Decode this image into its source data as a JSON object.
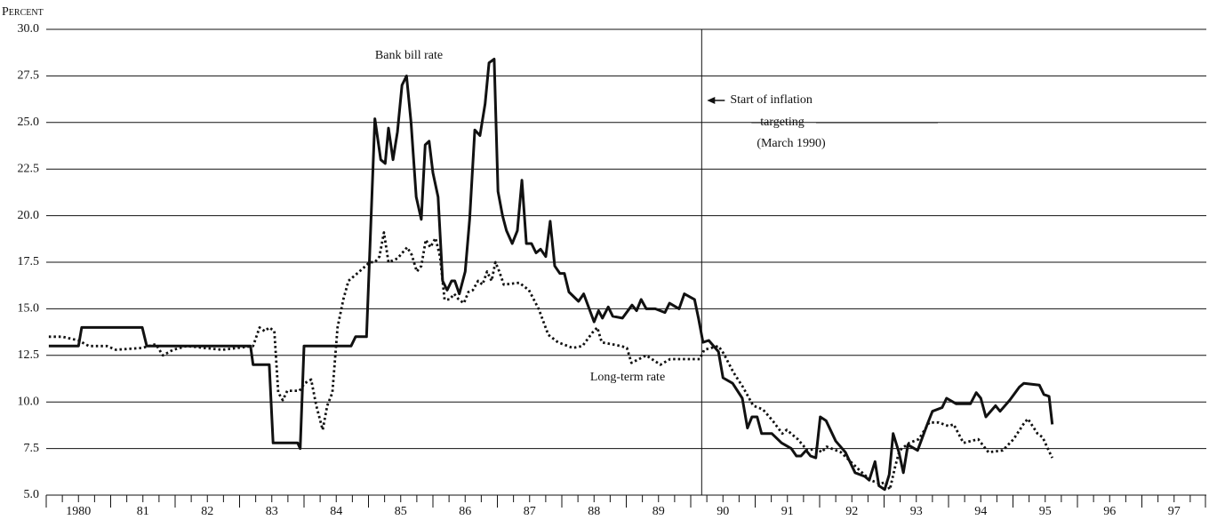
{
  "chart_data": {
    "type": "line",
    "y_label": "Percent",
    "xlim": [
      1980,
      1998
    ],
    "ylim": [
      5,
      30
    ],
    "grid": true,
    "xticks": [
      {
        "value": 1980.5,
        "label": "1980"
      },
      {
        "value": 1981.5,
        "label": "81"
      },
      {
        "value": 1982.5,
        "label": "82"
      },
      {
        "value": 1983.5,
        "label": "83"
      },
      {
        "value": 1984.5,
        "label": "84"
      },
      {
        "value": 1985.5,
        "label": "85"
      },
      {
        "value": 1986.5,
        "label": "86"
      },
      {
        "value": 1987.5,
        "label": "87"
      },
      {
        "value": 1988.5,
        "label": "88"
      },
      {
        "value": 1989.5,
        "label": "89"
      },
      {
        "value": 1990.5,
        "label": "90"
      },
      {
        "value": 1991.5,
        "label": "91"
      },
      {
        "value": 1992.5,
        "label": "92"
      },
      {
        "value": 1993.5,
        "label": "93"
      },
      {
        "value": 1994.5,
        "label": "94"
      },
      {
        "value": 1995.5,
        "label": "95"
      },
      {
        "value": 1996.5,
        "label": "96"
      },
      {
        "value": 1997.5,
        "label": "97"
      }
    ],
    "yticks": [
      {
        "value": 5,
        "label": "5.0"
      },
      7.5,
      {
        "value": 10,
        "label": "10.0"
      },
      12.5,
      {
        "value": 15,
        "label": "15.0"
      },
      17.5,
      {
        "value": 20,
        "label": "20.0"
      },
      22.5,
      {
        "value": 25,
        "label": "25.0"
      },
      27.5,
      {
        "value": 30,
        "label": "30.0"
      }
    ],
    "annotation": {
      "x": 1990.17,
      "lines": [
        "Start of inflation",
        "targeting",
        "(March 1990)"
      ]
    },
    "series": [
      {
        "name": "Bank bill rate",
        "color": "#111111",
        "style": "solid",
        "x": [
          1980.04,
          1980.5,
          1980.55,
          1981.49,
          1981.56,
          1983.17,
          1983.21,
          1983.46,
          1983.52,
          1983.9,
          1983.94,
          1984.0,
          1984.73,
          1984.8,
          1984.97,
          1985.1,
          1985.19,
          1985.26,
          1985.31,
          1985.38,
          1985.45,
          1985.52,
          1985.59,
          1985.66,
          1985.74,
          1985.82,
          1985.88,
          1985.94,
          1986.0,
          1986.08,
          1986.15,
          1986.22,
          1986.29,
          1986.34,
          1986.41,
          1986.5,
          1986.57,
          1986.65,
          1986.73,
          1986.81,
          1986.87,
          1986.95,
          1987.01,
          1987.08,
          1987.14,
          1987.23,
          1987.31,
          1987.38,
          1987.45,
          1987.53,
          1987.6,
          1987.67,
          1987.75,
          1987.82,
          1987.89,
          1987.97,
          1988.04,
          1988.11,
          1988.26,
          1988.34,
          1988.5,
          1988.57,
          1988.63,
          1988.72,
          1988.79,
          1988.94,
          1989.09,
          1989.16,
          1989.23,
          1989.31,
          1989.45,
          1989.6,
          1989.67,
          1989.82,
          1989.9,
          1990.06,
          1990.12,
          1990.19,
          1990.28,
          1990.43,
          1990.5,
          1990.65,
          1990.8,
          1990.88,
          1990.95,
          1991.03,
          1991.1,
          1991.26,
          1991.41,
          1991.56,
          1991.64,
          1991.71,
          1991.79,
          1991.86,
          1991.94,
          1992.01,
          1992.1,
          1992.25,
          1992.4,
          1992.55,
          1992.7,
          1992.77,
          1992.86,
          1992.92,
          1993.01,
          1993.08,
          1993.14,
          1993.23,
          1993.3,
          1993.37,
          1993.52,
          1993.67,
          1993.75,
          1993.9,
          1993.97,
          1994.12,
          1994.34,
          1994.43,
          1994.5,
          1994.58,
          1994.73,
          1994.8,
          1994.95,
          1995.1,
          1995.17,
          1995.41,
          1995.48,
          1995.56,
          1995.61
        ],
        "values": [
          13.0,
          13.0,
          14.0,
          14.0,
          13.0,
          13.0,
          12.0,
          12.0,
          7.8,
          7.8,
          7.5,
          13.0,
          13.0,
          13.5,
          13.5,
          25.2,
          23.0,
          22.8,
          24.7,
          23.0,
          24.5,
          27.0,
          27.5,
          25.0,
          21.0,
          19.8,
          23.8,
          24.0,
          22.3,
          21.0,
          16.5,
          16.0,
          16.5,
          16.5,
          15.8,
          17.0,
          19.8,
          24.6,
          24.3,
          26.0,
          28.2,
          28.4,
          21.3,
          20.0,
          19.2,
          18.5,
          19.2,
          21.9,
          18.5,
          18.5,
          18.0,
          18.2,
          17.8,
          19.7,
          17.3,
          16.9,
          16.9,
          15.9,
          15.4,
          15.8,
          14.3,
          14.9,
          14.5,
          15.1,
          14.6,
          14.5,
          15.2,
          14.9,
          15.5,
          15.0,
          15.0,
          14.8,
          15.3,
          15.0,
          15.8,
          15.5,
          14.5,
          13.2,
          13.3,
          12.7,
          11.3,
          11.0,
          10.2,
          8.6,
          9.2,
          9.2,
          8.3,
          8.3,
          7.8,
          7.5,
          7.1,
          7.1,
          7.4,
          7.1,
          7.0,
          9.2,
          9.0,
          7.9,
          7.3,
          6.2,
          6.0,
          5.8,
          6.8,
          5.5,
          5.3,
          6.1,
          8.3,
          7.3,
          6.2,
          7.7,
          7.4,
          8.8,
          9.5,
          9.7,
          10.2,
          9.9,
          9.9,
          10.5,
          10.2,
          9.2,
          9.8,
          9.5,
          10.1,
          10.8,
          11.0,
          10.9,
          10.4,
          10.3,
          8.8
        ]
      },
      {
        "name": "Long-term rate",
        "color": "#111111",
        "style": "dotted",
        "x": [
          1980.04,
          1980.25,
          1980.5,
          1980.66,
          1980.94,
          1981.08,
          1981.49,
          1981.7,
          1981.81,
          1981.97,
          1982.18,
          1982.73,
          1983.21,
          1983.31,
          1983.39,
          1983.46,
          1983.54,
          1983.6,
          1983.67,
          1983.74,
          1983.93,
          1984.01,
          1984.11,
          1984.19,
          1984.29,
          1984.36,
          1984.44,
          1984.52,
          1984.61,
          1984.69,
          1984.86,
          1985.02,
          1985.1,
          1985.17,
          1985.24,
          1985.31,
          1985.45,
          1985.6,
          1985.67,
          1985.75,
          1985.82,
          1985.89,
          1985.96,
          1986.04,
          1986.11,
          1986.18,
          1986.26,
          1986.33,
          1986.4,
          1986.48,
          1986.55,
          1986.62,
          1986.7,
          1986.77,
          1986.84,
          1986.91,
          1986.97,
          1987.03,
          1987.1,
          1987.34,
          1987.49,
          1987.64,
          1987.79,
          1987.94,
          1988.17,
          1988.32,
          1988.47,
          1988.55,
          1988.62,
          1988.92,
          1989.01,
          1989.08,
          1989.31,
          1989.53,
          1989.68,
          1990.14,
          1990.21,
          1990.43,
          1990.51,
          1990.66,
          1990.81,
          1990.97,
          1991.12,
          1991.27,
          1991.42,
          1991.49,
          1991.66,
          1991.81,
          1991.96,
          1992.03,
          1992.11,
          1992.33,
          1992.48,
          1992.63,
          1992.79,
          1992.94,
          1993.02,
          1993.09,
          1993.17,
          1993.24,
          1993.39,
          1993.54,
          1993.7,
          1993.85,
          1994.0,
          1994.08,
          1994.23,
          1994.46,
          1994.62,
          1994.84,
          1995.01,
          1995.16,
          1995.23,
          1995.38,
          1995.46,
          1995.54,
          1995.61
        ],
        "values": [
          13.5,
          13.5,
          13.3,
          13.0,
          13.0,
          12.8,
          12.9,
          13.1,
          12.5,
          12.8,
          13.0,
          12.8,
          13.0,
          14.0,
          13.8,
          14.0,
          13.8,
          10.5,
          10.1,
          10.6,
          10.6,
          11.0,
          11.2,
          9.8,
          8.5,
          9.8,
          10.5,
          14.0,
          15.5,
          16.5,
          17.0,
          17.5,
          17.5,
          17.8,
          19.1,
          17.5,
          17.7,
          18.3,
          17.9,
          17.0,
          17.3,
          18.7,
          18.3,
          18.8,
          17.8,
          15.5,
          15.5,
          15.8,
          15.5,
          15.3,
          15.9,
          16.0,
          16.5,
          16.3,
          17.0,
          16.5,
          17.5,
          17.0,
          16.3,
          16.4,
          16.0,
          15.0,
          13.6,
          13.2,
          12.9,
          13.0,
          13.7,
          14.0,
          13.2,
          13.0,
          12.9,
          12.1,
          12.5,
          12.0,
          12.3,
          12.3,
          12.8,
          13.0,
          12.6,
          11.6,
          10.8,
          9.8,
          9.6,
          9.0,
          8.3,
          8.5,
          8.0,
          7.4,
          7.5,
          7.3,
          7.6,
          7.3,
          6.8,
          6.3,
          5.8,
          5.6,
          5.7,
          5.3,
          6.5,
          7.4,
          7.8,
          8.0,
          8.9,
          8.9,
          8.7,
          8.8,
          7.8,
          8.0,
          7.3,
          7.4,
          8.0,
          8.8,
          9.1,
          8.3,
          8.1,
          7.5,
          7.0
        ]
      }
    ]
  }
}
